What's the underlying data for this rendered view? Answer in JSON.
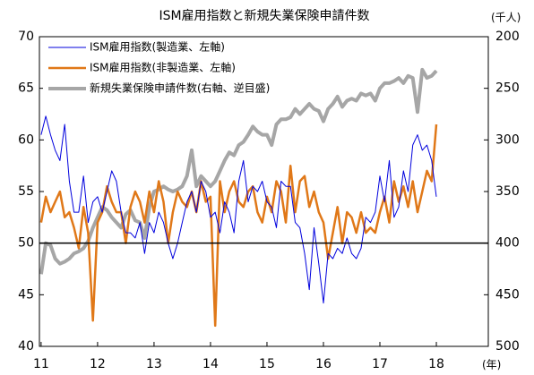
{
  "chart_data": {
    "type": "line",
    "title": "ISM雇用指数と新規失業保険申請件数",
    "y2_unit_label": "(千人)",
    "x_unit_label": "(年)",
    "x": [
      11,
      11.083,
      11.167,
      11.25,
      11.333,
      11.417,
      11.5,
      11.583,
      11.667,
      11.75,
      11.833,
      11.917,
      12,
      12.083,
      12.167,
      12.25,
      12.333,
      12.417,
      12.5,
      12.583,
      12.667,
      12.75,
      12.833,
      12.917,
      13,
      13.083,
      13.167,
      13.25,
      13.333,
      13.417,
      13.5,
      13.583,
      13.667,
      13.75,
      13.833,
      13.917,
      14,
      14.083,
      14.167,
      14.25,
      14.333,
      14.417,
      14.5,
      14.583,
      14.667,
      14.75,
      14.833,
      14.917,
      15,
      15.083,
      15.167,
      15.25,
      15.333,
      15.417,
      15.5,
      15.583,
      15.667,
      15.75,
      15.833,
      15.917,
      16,
      16.083,
      16.167,
      16.25,
      16.333,
      16.417,
      16.5,
      16.583,
      16.667,
      16.75,
      16.833,
      16.917,
      17,
      17.083,
      17.167,
      17.25,
      17.333,
      17.417,
      17.5,
      17.583,
      17.667,
      17.75,
      17.833,
      17.917,
      18
    ],
    "series": [
      {
        "name": "ISM雇用指数(製造業、左軸)",
        "color": "#0000dd",
        "width": 1,
        "axis": "y",
        "values": [
          60.5,
          62.3,
          60.5,
          59,
          58,
          61.5,
          56,
          53,
          53,
          56.5,
          52,
          54,
          54.5,
          53,
          55,
          57,
          56,
          53,
          51,
          51,
          50.5,
          52,
          49,
          52,
          51,
          53,
          52,
          50,
          48.5,
          50,
          52,
          54,
          55,
          53,
          56,
          55,
          52.5,
          53,
          51,
          54,
          53,
          51,
          56,
          58,
          54,
          55.5,
          55,
          56,
          54,
          53.5,
          51.5,
          56,
          55.5,
          55.5,
          52,
          51.5,
          49,
          45.5,
          51.5,
          48,
          44.2,
          49,
          48.5,
          49.5,
          49,
          50.5,
          49,
          48.5,
          49.5,
          52.5,
          52,
          53,
          56.5,
          54,
          58,
          52.5,
          53.5,
          57,
          55,
          59.5,
          60.5,
          59,
          59.5,
          58,
          54.5
        ]
      },
      {
        "name": "ISM雇用指数(非製造業、左軸)",
        "color": "#e07818",
        "width": 2.5,
        "axis": "y",
        "values": [
          52,
          54.5,
          53,
          54,
          55,
          52.5,
          53,
          51.5,
          49.5,
          53.5,
          51,
          42.5,
          52,
          53,
          55.5,
          54,
          53,
          53,
          50,
          53.5,
          55,
          54,
          52,
          55,
          53,
          56,
          54,
          50,
          53,
          55,
          54,
          53.5,
          55,
          53,
          56,
          54,
          54.5,
          42,
          56,
          53,
          55,
          56,
          54,
          53.5,
          55,
          55.5,
          53,
          52,
          54.5,
          53,
          56,
          55,
          52,
          57.5,
          53,
          56,
          56.5,
          53.5,
          55,
          53,
          52,
          48.5,
          51,
          53.5,
          50,
          53,
          52.5,
          51,
          53,
          51,
          51.5,
          51,
          53,
          54.5,
          52,
          56,
          54,
          55.5,
          53.5,
          56,
          53,
          55,
          57,
          56,
          61.5
        ]
      },
      {
        "name": "新規失業保険申請件数(右軸、逆目盛)",
        "color": "#a6a6a6",
        "width": 4,
        "axis": "y2",
        "values": [
          430,
          400,
          402,
          415,
          420,
          418,
          415,
          410,
          408,
          405,
          398,
          385,
          375,
          365,
          368,
          375,
          380,
          385,
          372,
          368,
          378,
          380,
          395,
          365,
          350,
          348,
          345,
          348,
          350,
          348,
          345,
          335,
          310,
          345,
          335,
          340,
          345,
          340,
          330,
          320,
          312,
          315,
          305,
          302,
          295,
          287,
          292,
          295,
          295,
          305,
          285,
          280,
          280,
          278,
          270,
          275,
          270,
          265,
          270,
          272,
          282,
          270,
          265,
          258,
          268,
          262,
          260,
          262,
          255,
          257,
          255,
          262,
          250,
          245,
          245,
          243,
          240,
          245,
          238,
          240,
          273,
          232,
          240,
          238,
          233
        ]
      }
    ],
    "xlim": [
      10.97,
      18.92
    ],
    "xticks": [
      11,
      12,
      13,
      14,
      15,
      16,
      17,
      18
    ],
    "ylim": [
      40,
      70
    ],
    "yticks": [
      40,
      45,
      50,
      55,
      60,
      65,
      70
    ],
    "y2lim": [
      500,
      200
    ],
    "y2ticks": [
      200,
      250,
      300,
      350,
      400,
      450,
      500
    ],
    "y2_inverted": true,
    "reference_line": 50,
    "grid": false,
    "legend": "upper left"
  }
}
